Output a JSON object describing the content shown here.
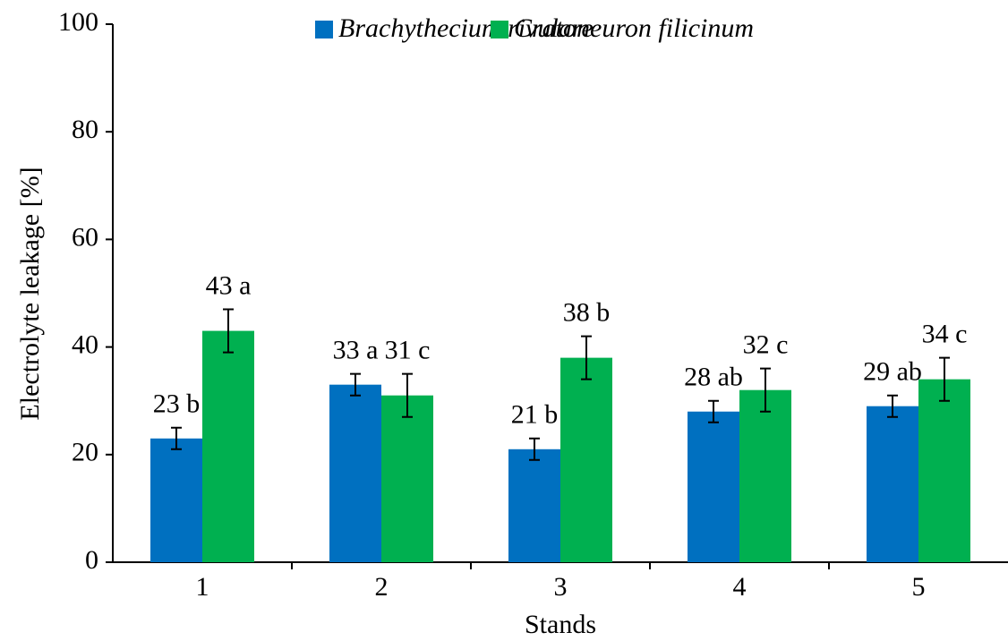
{
  "chart_data": {
    "type": "bar",
    "xlabel": "Stands",
    "ylabel": "Electrolyte leakage [%]",
    "categories": [
      "1",
      "2",
      "3",
      "4",
      "5"
    ],
    "series": [
      {
        "name": "Brachythecium rivulare",
        "color": "#0070c0",
        "values": [
          23,
          33,
          21,
          28,
          29
        ],
        "errors": [
          2,
          2,
          2,
          2,
          2
        ],
        "value_labels": [
          "23 b",
          "33 a",
          "21 b",
          "28 ab",
          "29 ab"
        ]
      },
      {
        "name": "Cratoneuron filicinum",
        "color": "#00b050",
        "values": [
          43,
          31,
          38,
          32,
          34
        ],
        "errors": [
          4,
          4,
          4,
          4,
          4
        ],
        "value_labels": [
          "43 a",
          "31 c",
          "38 b",
          "32 c",
          "34 c"
        ]
      }
    ],
    "ylim": [
      0,
      100
    ],
    "yticks": [
      0,
      20,
      40,
      60,
      80,
      100
    ],
    "legend": "top-right",
    "grid": false
  }
}
